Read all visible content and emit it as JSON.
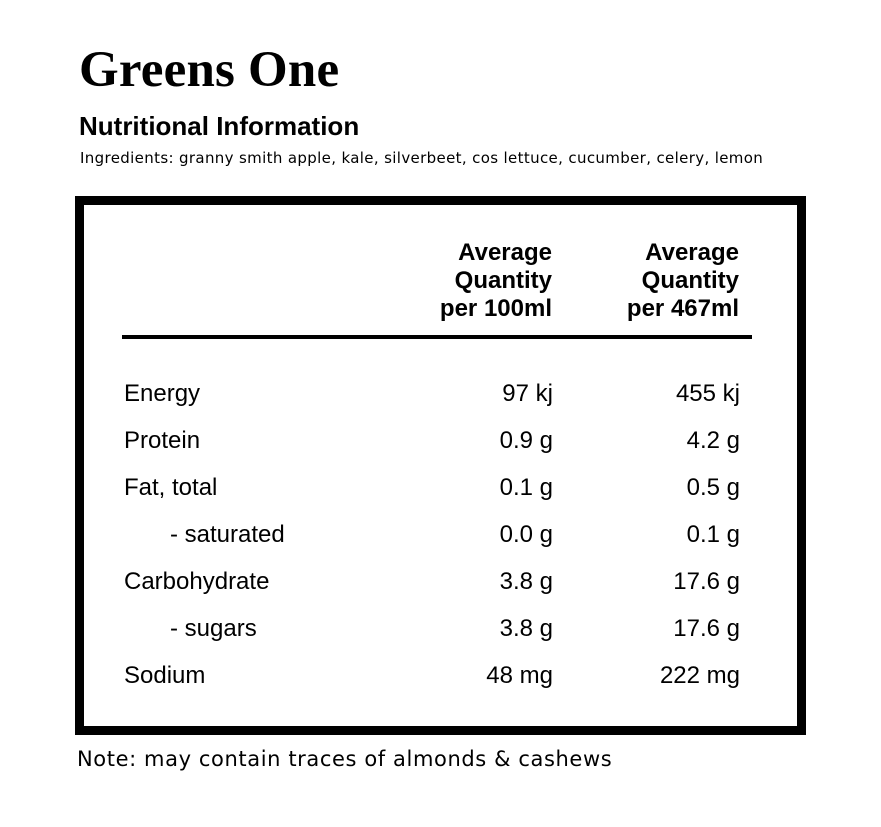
{
  "product": {
    "title": "Greens One",
    "subtitle": "Nutritional Information",
    "ingredients": "Ingredients: granny smith apple, kale, silverbeet, cos lettuce, cucumber, celery, lemon"
  },
  "table": {
    "columns": [
      {
        "line1": "Average",
        "line2": "Quantity",
        "line3": "per 100ml"
      },
      {
        "line1": "Average",
        "line2": "Quantity",
        "line3": "per 467ml"
      }
    ],
    "rows": [
      {
        "name": "Energy",
        "per100": "97 kj",
        "per467": "455 kj"
      },
      {
        "name": "Protein",
        "per100": "0.9 g",
        "per467": "4.2 g"
      },
      {
        "name": "Fat, total",
        "per100": "0.1 g",
        "per467": "0.5 g"
      },
      {
        "name": "- saturated",
        "per100": "0.0 g",
        "per467": "0.1 g"
      },
      {
        "name": "Carbohydrate",
        "per100": "3.8 g",
        "per467": "17.6 g"
      },
      {
        "name": "- sugars",
        "per100": "3.8 g",
        "per467": "17.6 g"
      },
      {
        "name": "Sodium",
        "per100": "48 mg",
        "per467": "222 mg"
      }
    ]
  },
  "note": "Note: may contain traces of almonds & cashews"
}
